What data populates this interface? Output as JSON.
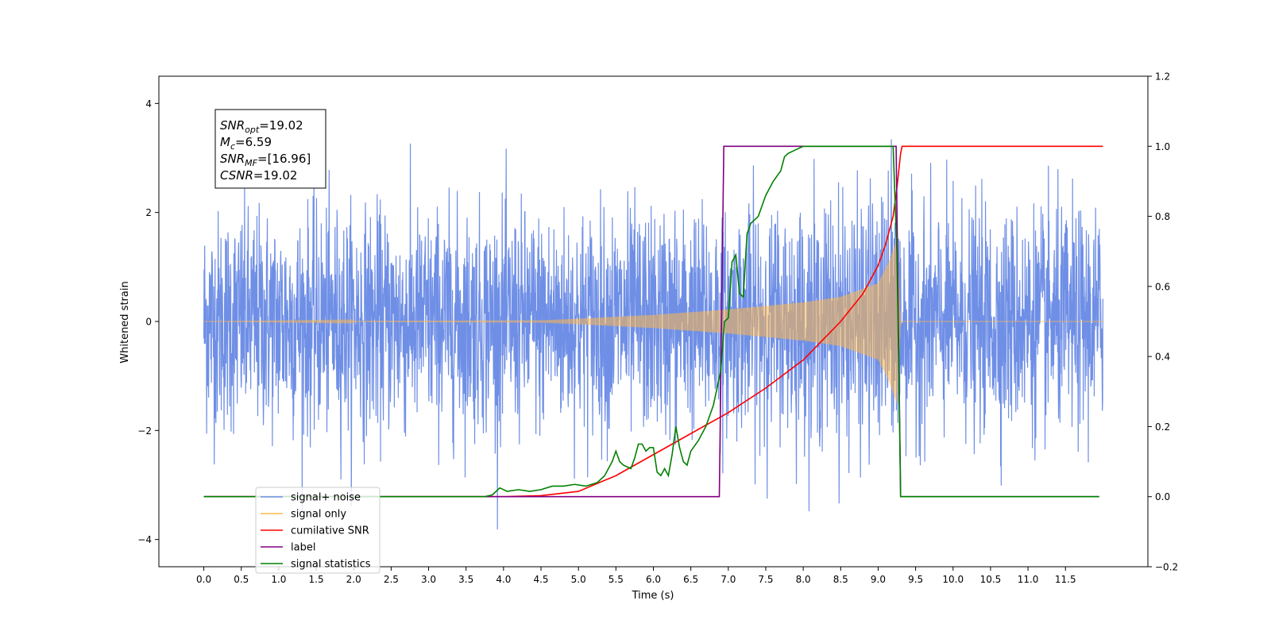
{
  "chart_data": {
    "type": "line",
    "title": "",
    "xlabel": "Time (s)",
    "ylabel": "Whitened strain",
    "y2label": "",
    "xlim": [
      -0.6,
      12.6
    ],
    "ylim": [
      -4.5,
      4.5
    ],
    "y2lim": [
      -0.2,
      1.2
    ],
    "x_ticks": [
      "0.0",
      "0.5",
      "1.0",
      "1.5",
      "2.0",
      "2.5",
      "3.0",
      "3.5",
      "4.0",
      "4.5",
      "5.0",
      "5.5",
      "6.0",
      "6.5",
      "7.0",
      "7.5",
      "8.0",
      "8.5",
      "9.0",
      "9.5",
      "10.0",
      "10.5",
      "11.0",
      "11.5"
    ],
    "y_ticks": [
      "4",
      "2",
      "0",
      "−2",
      "−4"
    ],
    "y2_ticks": [
      "1.2",
      "1.0",
      "0.8",
      "0.6",
      "0.4",
      "0.2",
      "0.0",
      "−0.2"
    ],
    "grid": false,
    "legend_position": "lower-left",
    "annotation_lines": [
      {
        "label": "SNR",
        "sub": "opt",
        "value": "=19.02"
      },
      {
        "label": "M",
        "sub": "c",
        "value": "=6.59"
      },
      {
        "label": "SNR",
        "sub": "MF",
        "value": "=[16.96]"
      },
      {
        "label": "CSNR",
        "sub": "",
        "value": "=19.02"
      }
    ],
    "series": [
      {
        "name": "signal+ noise",
        "color": "#6f8fe6",
        "axis": "left",
        "kind": "noise",
        "x_range": [
          0.0,
          12.0
        ],
        "noise_std": 1.0,
        "peak_min": -3.8,
        "peak_max": 4.1
      },
      {
        "name": "signal only",
        "color": "#ffb84d",
        "axis": "left",
        "kind": "chirp",
        "x_range": [
          0.0,
          12.0
        ],
        "merger_time": 9.25,
        "envelope": [
          [
            0.0,
            0.0
          ],
          [
            4.5,
            0.02
          ],
          [
            5.0,
            0.05
          ],
          [
            6.0,
            0.12
          ],
          [
            7.0,
            0.22
          ],
          [
            8.0,
            0.35
          ],
          [
            8.5,
            0.45
          ],
          [
            9.0,
            0.7
          ],
          [
            9.15,
            1.1
          ],
          [
            9.25,
            1.5
          ],
          [
            9.3,
            0.0
          ],
          [
            12.0,
            0.0
          ]
        ]
      },
      {
        "name": "cumilative SNR",
        "color": "#ff0000",
        "axis": "right",
        "x": [
          0.0,
          4.0,
          4.5,
          5.0,
          5.5,
          6.0,
          6.5,
          7.0,
          7.5,
          8.0,
          8.5,
          8.8,
          9.0,
          9.1,
          9.2,
          9.25,
          9.3,
          9.32,
          12.0
        ],
        "y": [
          0.0,
          0.0,
          0.003,
          0.015,
          0.06,
          0.12,
          0.18,
          0.24,
          0.31,
          0.39,
          0.5,
          0.58,
          0.66,
          0.72,
          0.8,
          0.88,
          0.98,
          1.0,
          1.0
        ]
      },
      {
        "name": "label",
        "color": "#800080",
        "axis": "right",
        "x": [
          0.0,
          6.88,
          6.94,
          9.24,
          9.3,
          11.95
        ],
        "y": [
          0.0,
          0.0,
          1.0,
          1.0,
          0.0,
          0.0
        ]
      },
      {
        "name": "signal statistics",
        "color": "#008000",
        "axis": "right",
        "x": [
          0.0,
          3.5,
          3.75,
          3.85,
          3.95,
          4.05,
          4.2,
          4.35,
          4.5,
          4.65,
          4.8,
          4.95,
          5.1,
          5.25,
          5.35,
          5.45,
          5.5,
          5.55,
          5.6,
          5.7,
          5.75,
          5.8,
          5.85,
          5.9,
          5.95,
          6.0,
          6.05,
          6.1,
          6.15,
          6.2,
          6.25,
          6.3,
          6.35,
          6.4,
          6.45,
          6.5,
          6.6,
          6.7,
          6.8,
          6.9,
          6.95,
          7.0,
          7.05,
          7.1,
          7.15,
          7.2,
          7.25,
          7.3,
          7.4,
          7.5,
          7.6,
          7.7,
          7.75,
          7.8,
          7.9,
          8.0,
          8.5,
          9.0,
          9.2,
          9.25,
          9.28,
          9.3,
          11.95
        ],
        "y": [
          0.0,
          0.0,
          0.0,
          0.005,
          0.025,
          0.015,
          0.02,
          0.015,
          0.02,
          0.03,
          0.03,
          0.035,
          0.03,
          0.04,
          0.06,
          0.1,
          0.13,
          0.1,
          0.09,
          0.08,
          0.11,
          0.15,
          0.15,
          0.13,
          0.14,
          0.14,
          0.07,
          0.06,
          0.08,
          0.06,
          0.12,
          0.2,
          0.14,
          0.1,
          0.09,
          0.13,
          0.16,
          0.2,
          0.26,
          0.36,
          0.5,
          0.51,
          0.67,
          0.69,
          0.58,
          0.57,
          0.75,
          0.78,
          0.8,
          0.86,
          0.9,
          0.93,
          0.97,
          0.98,
          0.99,
          1.0,
          1.0,
          1.0,
          1.0,
          0.7,
          0.3,
          0.0,
          0.0
        ]
      }
    ]
  }
}
